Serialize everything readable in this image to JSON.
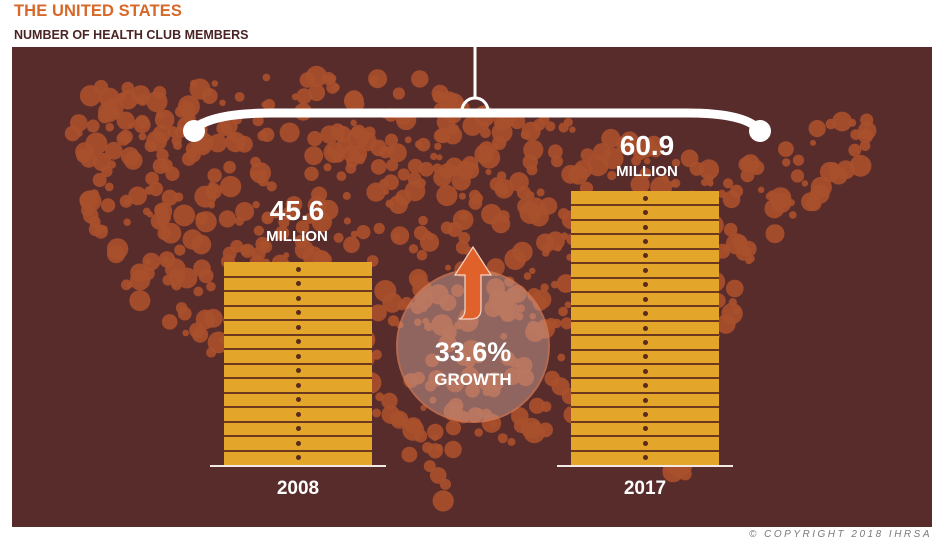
{
  "header": {
    "title": "THE UNITED STATES",
    "subtitle": "NUMBER OF HEALTH CLUB MEMBERS"
  },
  "bars": [
    {
      "year": "2008",
      "value": "45.6",
      "unit": "MILLION",
      "stripes": 14
    },
    {
      "year": "2017",
      "value": "60.9",
      "unit": "MILLION",
      "stripes": 19
    }
  ],
  "growth": {
    "percent": "33.6%",
    "label": "GROWTH",
    "icon": "arrow-up-icon"
  },
  "footer": {
    "copyright": "© COPYRIGHT 2018 IHRSA"
  },
  "colors": {
    "title": "#d6692a",
    "subtitle": "#4a2424",
    "panel": "#592c2c",
    "dots": "#a84f2c",
    "bar": "#e3a52a",
    "bar_line": "#6b3a1c",
    "arrow": "#e0622a"
  },
  "chart_data": {
    "type": "bar",
    "title": "THE UNITED STATES — NUMBER OF HEALTH CLUB MEMBERS",
    "categories": [
      "2008",
      "2017"
    ],
    "values": [
      45.6,
      60.9
    ],
    "unit": "million members",
    "xlabel": "",
    "ylabel": "Health club members (millions)",
    "annotations": [
      "45.6 MILLION",
      "60.9 MILLION",
      "33.6% GROWTH"
    ],
    "grid": false,
    "legend": null
  }
}
